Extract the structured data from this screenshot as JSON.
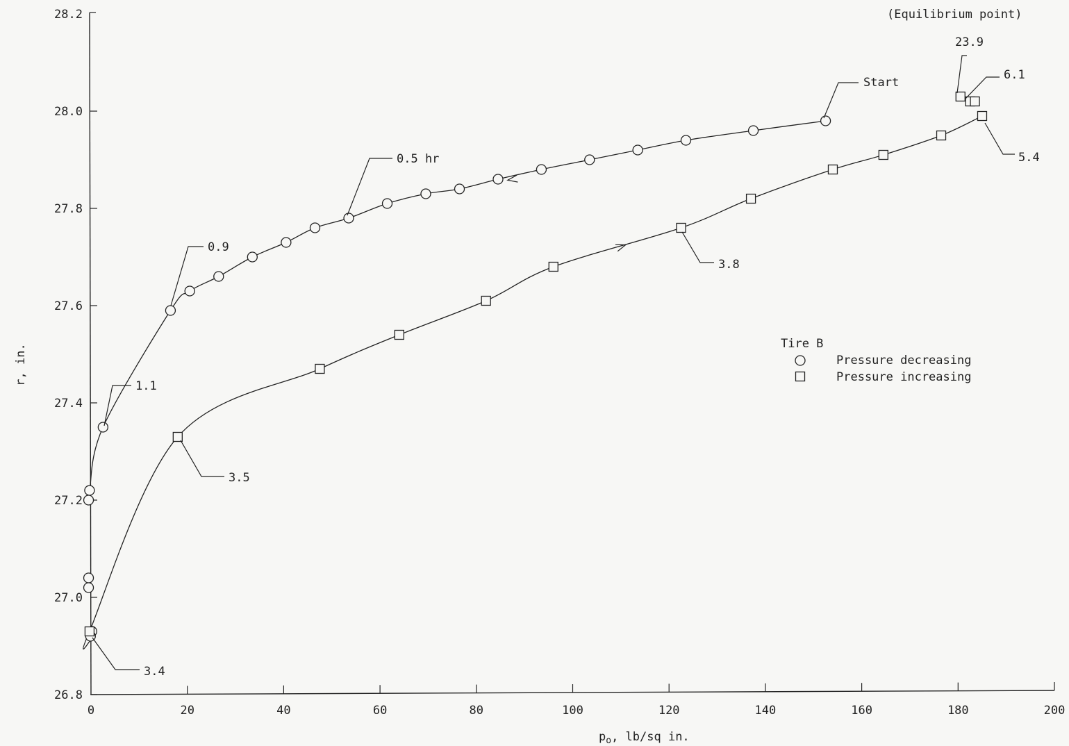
{
  "chart_data": {
    "type": "line",
    "xlabel": "p",
    "xlabel_sub": "o",
    "xlabel_rest": ", lb/sq in.",
    "ylabel": "r, in.",
    "xlim": [
      0,
      200
    ],
    "ylim": [
      26.8,
      28.2
    ],
    "xticks": [
      0,
      20,
      40,
      60,
      80,
      100,
      120,
      140,
      160,
      180,
      200
    ],
    "xtick_labels": [
      "0",
      "20",
      "40",
      "60",
      "80",
      "100",
      "120",
      "140",
      "160",
      "180",
      "200"
    ],
    "yticks": [
      26.8,
      27.0,
      27.2,
      27.4,
      27.6,
      27.8,
      28.0,
      28.2
    ],
    "ytick_labels": [
      "26.8",
      "27.0",
      "27.2",
      "27.4",
      "27.6",
      "27.8",
      "28.0",
      "28.2"
    ],
    "legend": {
      "title": "Tire B",
      "entries": [
        {
          "marker": "circle",
          "label": "Pressure decreasing"
        },
        {
          "marker": "square",
          "label": "Pressure increasing"
        }
      ]
    },
    "series": [
      {
        "marker": "circle",
        "x": [
          152.5,
          137.5,
          123.5,
          113.5,
          103.5,
          93.5,
          84.5,
          76.5,
          69.5,
          61.5,
          53.5,
          46.5,
          40.5,
          33.5,
          26.5,
          20.5,
          16.5,
          2.5,
          -0.3,
          -0.5,
          -0.5,
          -0.5,
          0.2,
          -0.1
        ],
        "y": [
          27.98,
          27.96,
          27.94,
          27.92,
          27.9,
          27.88,
          27.86,
          27.84,
          27.83,
          27.81,
          27.78,
          27.76,
          27.73,
          27.7,
          27.66,
          27.63,
          27.59,
          27.35,
          27.22,
          27.2,
          27.04,
          27.02,
          26.93,
          26.92
        ]
      },
      {
        "marker": "square",
        "x": [
          -0.3,
          18.0,
          47.5,
          64.0,
          82.0,
          96.0,
          122.5,
          137.0,
          154.0,
          164.5,
          176.5,
          185.0,
          180.5,
          182.5,
          183.5
        ],
        "y": [
          26.93,
          27.33,
          27.47,
          27.54,
          27.61,
          27.68,
          27.76,
          27.82,
          27.88,
          27.91,
          27.95,
          27.99,
          28.03,
          28.02,
          28.02
        ]
      }
    ],
    "annotations": [
      {
        "text": "(Equilibrium point)"
      },
      {
        "text": "Start"
      },
      {
        "text": "23.9"
      },
      {
        "text": "6.1"
      },
      {
        "text": "5.4"
      },
      {
        "text": "0.5 hr"
      },
      {
        "text": "0.9"
      },
      {
        "text": "1.1"
      },
      {
        "text": "3.8"
      },
      {
        "text": "3.5"
      },
      {
        "text": "3.4"
      }
    ]
  }
}
